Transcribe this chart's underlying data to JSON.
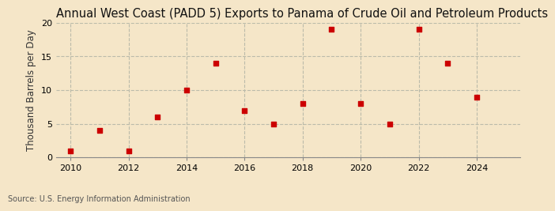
{
  "title": "Annual West Coast (PADD 5) Exports to Panama of Crude Oil and Petroleum Products",
  "ylabel": "Thousand Barrels per Day",
  "source": "Source: U.S. Energy Information Administration",
  "background_color": "#f5e6c8",
  "plot_bg_color": "#f5e6c8",
  "x": [
    2010,
    2011,
    2012,
    2013,
    2014,
    2015,
    2016,
    2017,
    2018,
    2019,
    2020,
    2021,
    2022,
    2023,
    2024
  ],
  "y": [
    1,
    4,
    1,
    6,
    10,
    14,
    7,
    5,
    8,
    19,
    8,
    5,
    19,
    14,
    9
  ],
  "marker_color": "#cc0000",
  "marker": "s",
  "marker_size": 4,
  "ylim": [
    0,
    20
  ],
  "yticks": [
    0,
    5,
    10,
    15,
    20
  ],
  "xlim": [
    2009.5,
    2025.5
  ],
  "xticks": [
    2010,
    2012,
    2014,
    2016,
    2018,
    2020,
    2022,
    2024
  ],
  "grid_color": "#bbbbaa",
  "grid_style": "--",
  "title_fontsize": 10.5,
  "ylabel_fontsize": 8.5,
  "tick_fontsize": 8,
  "source_fontsize": 7
}
